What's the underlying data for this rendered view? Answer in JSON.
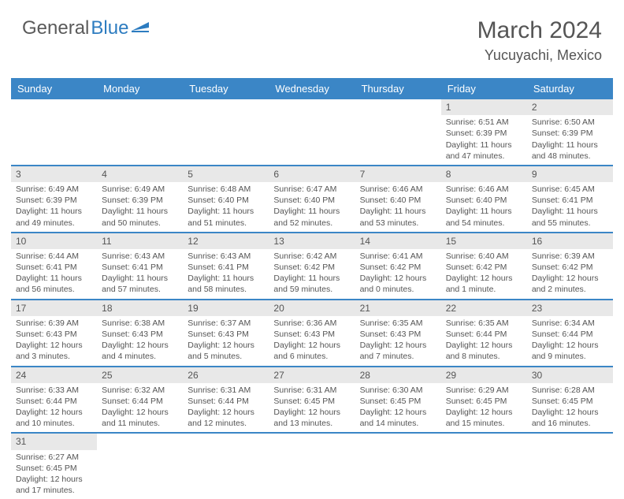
{
  "logo": {
    "text_a": "General",
    "text_b": "Blue"
  },
  "title": "March 2024",
  "location": "Yucuyachi, Mexico",
  "colors": {
    "header_bg": "#3b86c6",
    "header_text": "#ffffff",
    "daynum_bg": "#e8e8e8",
    "text": "#555555",
    "row_border": "#3b86c6",
    "logo_blue": "#2d7cc0"
  },
  "day_names": [
    "Sunday",
    "Monday",
    "Tuesday",
    "Wednesday",
    "Thursday",
    "Friday",
    "Saturday"
  ],
  "weeks": [
    [
      null,
      null,
      null,
      null,
      null,
      {
        "n": "1",
        "sr": "Sunrise: 6:51 AM",
        "ss": "Sunset: 6:39 PM",
        "d1": "Daylight: 11 hours",
        "d2": "and 47 minutes."
      },
      {
        "n": "2",
        "sr": "Sunrise: 6:50 AM",
        "ss": "Sunset: 6:39 PM",
        "d1": "Daylight: 11 hours",
        "d2": "and 48 minutes."
      }
    ],
    [
      {
        "n": "3",
        "sr": "Sunrise: 6:49 AM",
        "ss": "Sunset: 6:39 PM",
        "d1": "Daylight: 11 hours",
        "d2": "and 49 minutes."
      },
      {
        "n": "4",
        "sr": "Sunrise: 6:49 AM",
        "ss": "Sunset: 6:39 PM",
        "d1": "Daylight: 11 hours",
        "d2": "and 50 minutes."
      },
      {
        "n": "5",
        "sr": "Sunrise: 6:48 AM",
        "ss": "Sunset: 6:40 PM",
        "d1": "Daylight: 11 hours",
        "d2": "and 51 minutes."
      },
      {
        "n": "6",
        "sr": "Sunrise: 6:47 AM",
        "ss": "Sunset: 6:40 PM",
        "d1": "Daylight: 11 hours",
        "d2": "and 52 minutes."
      },
      {
        "n": "7",
        "sr": "Sunrise: 6:46 AM",
        "ss": "Sunset: 6:40 PM",
        "d1": "Daylight: 11 hours",
        "d2": "and 53 minutes."
      },
      {
        "n": "8",
        "sr": "Sunrise: 6:46 AM",
        "ss": "Sunset: 6:40 PM",
        "d1": "Daylight: 11 hours",
        "d2": "and 54 minutes."
      },
      {
        "n": "9",
        "sr": "Sunrise: 6:45 AM",
        "ss": "Sunset: 6:41 PM",
        "d1": "Daylight: 11 hours",
        "d2": "and 55 minutes."
      }
    ],
    [
      {
        "n": "10",
        "sr": "Sunrise: 6:44 AM",
        "ss": "Sunset: 6:41 PM",
        "d1": "Daylight: 11 hours",
        "d2": "and 56 minutes."
      },
      {
        "n": "11",
        "sr": "Sunrise: 6:43 AM",
        "ss": "Sunset: 6:41 PM",
        "d1": "Daylight: 11 hours",
        "d2": "and 57 minutes."
      },
      {
        "n": "12",
        "sr": "Sunrise: 6:43 AM",
        "ss": "Sunset: 6:41 PM",
        "d1": "Daylight: 11 hours",
        "d2": "and 58 minutes."
      },
      {
        "n": "13",
        "sr": "Sunrise: 6:42 AM",
        "ss": "Sunset: 6:42 PM",
        "d1": "Daylight: 11 hours",
        "d2": "and 59 minutes."
      },
      {
        "n": "14",
        "sr": "Sunrise: 6:41 AM",
        "ss": "Sunset: 6:42 PM",
        "d1": "Daylight: 12 hours",
        "d2": "and 0 minutes."
      },
      {
        "n": "15",
        "sr": "Sunrise: 6:40 AM",
        "ss": "Sunset: 6:42 PM",
        "d1": "Daylight: 12 hours",
        "d2": "and 1 minute."
      },
      {
        "n": "16",
        "sr": "Sunrise: 6:39 AM",
        "ss": "Sunset: 6:42 PM",
        "d1": "Daylight: 12 hours",
        "d2": "and 2 minutes."
      }
    ],
    [
      {
        "n": "17",
        "sr": "Sunrise: 6:39 AM",
        "ss": "Sunset: 6:43 PM",
        "d1": "Daylight: 12 hours",
        "d2": "and 3 minutes."
      },
      {
        "n": "18",
        "sr": "Sunrise: 6:38 AM",
        "ss": "Sunset: 6:43 PM",
        "d1": "Daylight: 12 hours",
        "d2": "and 4 minutes."
      },
      {
        "n": "19",
        "sr": "Sunrise: 6:37 AM",
        "ss": "Sunset: 6:43 PM",
        "d1": "Daylight: 12 hours",
        "d2": "and 5 minutes."
      },
      {
        "n": "20",
        "sr": "Sunrise: 6:36 AM",
        "ss": "Sunset: 6:43 PM",
        "d1": "Daylight: 12 hours",
        "d2": "and 6 minutes."
      },
      {
        "n": "21",
        "sr": "Sunrise: 6:35 AM",
        "ss": "Sunset: 6:43 PM",
        "d1": "Daylight: 12 hours",
        "d2": "and 7 minutes."
      },
      {
        "n": "22",
        "sr": "Sunrise: 6:35 AM",
        "ss": "Sunset: 6:44 PM",
        "d1": "Daylight: 12 hours",
        "d2": "and 8 minutes."
      },
      {
        "n": "23",
        "sr": "Sunrise: 6:34 AM",
        "ss": "Sunset: 6:44 PM",
        "d1": "Daylight: 12 hours",
        "d2": "and 9 minutes."
      }
    ],
    [
      {
        "n": "24",
        "sr": "Sunrise: 6:33 AM",
        "ss": "Sunset: 6:44 PM",
        "d1": "Daylight: 12 hours",
        "d2": "and 10 minutes."
      },
      {
        "n": "25",
        "sr": "Sunrise: 6:32 AM",
        "ss": "Sunset: 6:44 PM",
        "d1": "Daylight: 12 hours",
        "d2": "and 11 minutes."
      },
      {
        "n": "26",
        "sr": "Sunrise: 6:31 AM",
        "ss": "Sunset: 6:44 PM",
        "d1": "Daylight: 12 hours",
        "d2": "and 12 minutes."
      },
      {
        "n": "27",
        "sr": "Sunrise: 6:31 AM",
        "ss": "Sunset: 6:45 PM",
        "d1": "Daylight: 12 hours",
        "d2": "and 13 minutes."
      },
      {
        "n": "28",
        "sr": "Sunrise: 6:30 AM",
        "ss": "Sunset: 6:45 PM",
        "d1": "Daylight: 12 hours",
        "d2": "and 14 minutes."
      },
      {
        "n": "29",
        "sr": "Sunrise: 6:29 AM",
        "ss": "Sunset: 6:45 PM",
        "d1": "Daylight: 12 hours",
        "d2": "and 15 minutes."
      },
      {
        "n": "30",
        "sr": "Sunrise: 6:28 AM",
        "ss": "Sunset: 6:45 PM",
        "d1": "Daylight: 12 hours",
        "d2": "and 16 minutes."
      }
    ],
    [
      {
        "n": "31",
        "sr": "Sunrise: 6:27 AM",
        "ss": "Sunset: 6:45 PM",
        "d1": "Daylight: 12 hours",
        "d2": "and 17 minutes."
      },
      null,
      null,
      null,
      null,
      null,
      null
    ]
  ]
}
